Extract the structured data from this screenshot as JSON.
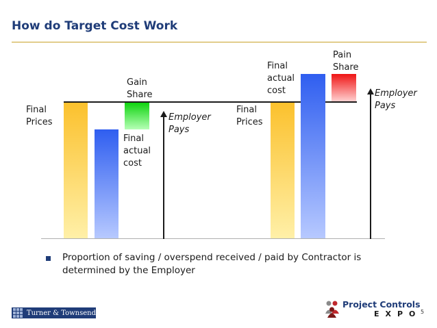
{
  "slide": {
    "title": "How do Target Cost Work",
    "page_number": "5"
  },
  "left_scenario": {
    "final_prices_label": [
      "Final",
      "Prices"
    ],
    "gain_share_label": [
      "Gain",
      "Share"
    ],
    "final_actual_cost_label": [
      "Final",
      "actual",
      "cost"
    ],
    "employer_pays_label": [
      "Employer",
      "Pays"
    ]
  },
  "right_scenario": {
    "final_actual_cost_label": [
      "Final",
      "actual",
      "cost"
    ],
    "pain_share_label": [
      "Pain",
      "Share"
    ],
    "final_prices_label": [
      "Final",
      "Prices"
    ],
    "employer_pays_label": [
      "Employer",
      "Pays"
    ]
  },
  "bullet": {
    "text": "Proportion of saving / overspend received / paid by Contractor is determined by the Employer"
  },
  "logos": {
    "turner_townsend": "Turner & Townsend",
    "project_controls": "Project Controls",
    "expo": "EXPO"
  },
  "colors": {
    "title": "#1f3c78",
    "rule": "#c9a227",
    "target_price_bar": "#fbc12d",
    "actual_cost_bar": "#2f5ef0",
    "gain_share_bar": "#10d410",
    "pain_share_bar": "#ef1414"
  }
}
